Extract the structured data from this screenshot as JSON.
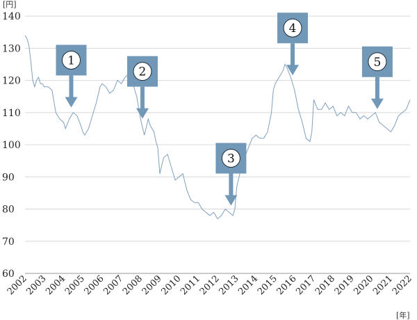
{
  "chart_data": {
    "type": "line",
    "y_unit": "[円]",
    "x_unit": "[年]",
    "ylim": [
      60,
      145
    ],
    "y_ticks": [
      60,
      70,
      80,
      90,
      100,
      110,
      120,
      130,
      140
    ],
    "xlim": [
      2002,
      2022
    ],
    "x_ticks": [
      "2002",
      "2003",
      "2004",
      "2005",
      "2006",
      "2007",
      "2008",
      "2009",
      "2010",
      "2011",
      "2012",
      "2013",
      "2014",
      "2015",
      "2016",
      "2017",
      "2018",
      "2019",
      "2020",
      "2021",
      "2022"
    ],
    "grid": true,
    "series": [
      {
        "color": "#7fa0bf",
        "x": [
          2002.0,
          2002.1,
          2002.2,
          2002.3,
          2002.4,
          2002.5,
          2002.6,
          2002.7,
          2002.8,
          2002.9,
          2003.0,
          2003.2,
          2003.4,
          2003.6,
          2003.8,
          2004.0,
          2004.1,
          2004.3,
          2004.5,
          2004.7,
          2004.9,
          2005.0,
          2005.1,
          2005.3,
          2005.5,
          2005.7,
          2005.9,
          2006.0,
          2006.2,
          2006.4,
          2006.6,
          2006.8,
          2007.0,
          2007.2,
          2007.4,
          2007.5,
          2007.6,
          2007.8,
          2008.0,
          2008.2,
          2008.4,
          2008.5,
          2008.7,
          2008.8,
          2008.9,
          2009.0,
          2009.2,
          2009.4,
          2009.6,
          2009.8,
          2010.0,
          2010.2,
          2010.4,
          2010.6,
          2010.8,
          2011.0,
          2011.2,
          2011.4,
          2011.6,
          2011.8,
          2012.0,
          2012.2,
          2012.4,
          2012.6,
          2012.8,
          2012.9,
          2013.0,
          2013.2,
          2013.4,
          2013.6,
          2013.8,
          2014.0,
          2014.2,
          2014.4,
          2014.6,
          2014.8,
          2014.9,
          2015.0,
          2015.2,
          2015.4,
          2015.5,
          2015.6,
          2015.8,
          2016.0,
          2016.2,
          2016.4,
          2016.6,
          2016.8,
          2016.9,
          2017.0,
          2017.2,
          2017.4,
          2017.6,
          2017.8,
          2018.0,
          2018.2,
          2018.4,
          2018.6,
          2018.8,
          2019.0,
          2019.2,
          2019.4,
          2019.6,
          2019.8,
          2020.0,
          2020.2,
          2020.4,
          2020.6,
          2020.8,
          2021.0,
          2021.2,
          2021.4,
          2021.6,
          2021.8,
          2022.0
        ],
        "y": [
          134,
          133,
          131,
          126,
          120,
          118,
          120,
          121,
          119,
          119,
          118,
          118,
          117,
          110,
          108,
          107,
          105,
          108,
          110,
          109,
          106,
          104,
          103,
          105,
          109,
          113,
          118,
          119,
          118,
          116,
          117,
          120,
          119,
          121,
          122,
          123,
          119,
          115,
          108,
          103,
          108,
          106,
          104,
          101,
          99,
          91,
          96,
          97,
          93,
          89,
          90,
          91,
          86,
          83,
          82,
          82,
          80,
          79,
          78,
          79,
          77,
          78,
          80,
          79,
          78,
          80,
          87,
          92,
          96,
          99,
          102,
          103,
          102,
          102,
          104,
          110,
          117,
          119,
          121,
          123,
          125,
          124,
          121,
          117,
          111,
          107,
          102,
          101,
          104,
          114,
          111,
          111,
          113,
          111,
          112,
          109,
          110,
          109,
          112,
          110,
          110,
          108,
          109,
          108,
          109,
          110,
          107,
          106,
          105,
          104,
          106,
          109,
          110,
          111,
          114
        ]
      }
    ],
    "annotations": [
      {
        "label": "1",
        "x": 2004.4
      },
      {
        "label": "2",
        "x": 2008.1
      },
      {
        "label": "3",
        "x": 2012.7
      },
      {
        "label": "4",
        "x": 2015.9
      },
      {
        "label": "5",
        "x": 2020.3
      }
    ]
  }
}
